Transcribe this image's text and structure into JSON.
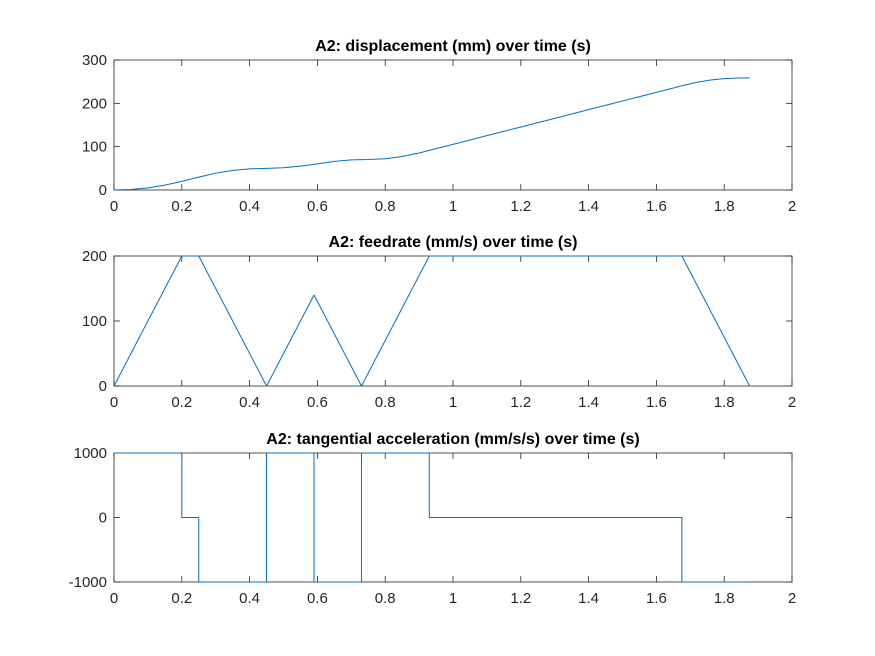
{
  "chart_data": [
    {
      "type": "line",
      "title": "A2: displacement (mm) over time (s)",
      "xlabel": "",
      "ylabel": "",
      "xlim": [
        0,
        2
      ],
      "ylim": [
        0,
        300
      ],
      "xticks": [
        "0",
        "0.2",
        "0.4",
        "0.6",
        "0.8",
        "1",
        "1.2",
        "1.4",
        "1.6",
        "1.8",
        "2"
      ],
      "xtick_values": [
        0,
        0.2,
        0.4,
        0.6,
        0.8,
        1,
        1.2,
        1.4,
        1.6,
        1.8,
        2
      ],
      "yticks": [
        "0",
        "100",
        "200",
        "300"
      ],
      "ytick_values": [
        0,
        100,
        200,
        300
      ],
      "grid": false,
      "series": [
        {
          "color": "#0072BD",
          "x": [
            0,
            0.05,
            0.1,
            0.15,
            0.2,
            0.25,
            0.3,
            0.35,
            0.4,
            0.45,
            0.5,
            0.55,
            0.6,
            0.65,
            0.7,
            0.75,
            0.8,
            0.85,
            0.9,
            0.95,
            1.0,
            1.1,
            1.2,
            1.3,
            1.4,
            1.5,
            1.6,
            1.68,
            1.72,
            1.76,
            1.8,
            1.84,
            1.875
          ],
          "y": [
            0,
            1.3,
            5,
            11.3,
            20,
            29.7,
            38.8,
            45.3,
            48.8,
            50,
            51.3,
            55,
            60.3,
            66,
            69.6,
            70.3,
            72.1,
            77.2,
            85.3,
            95.4,
            105.4,
            125.4,
            145.4,
            165.4,
            185.4,
            205.4,
            225.4,
            241.4,
            248.6,
            253.9,
            257.1,
            258.6,
            258.7
          ]
        }
      ]
    },
    {
      "type": "line",
      "title": "A2: feedrate (mm/s) over time (s)",
      "xlabel": "",
      "ylabel": "",
      "xlim": [
        0,
        2
      ],
      "ylim": [
        0,
        200
      ],
      "xticks": [
        "0",
        "0.2",
        "0.4",
        "0.6",
        "0.8",
        "1",
        "1.2",
        "1.4",
        "1.6",
        "1.8",
        "2"
      ],
      "xtick_values": [
        0,
        0.2,
        0.4,
        0.6,
        0.8,
        1,
        1.2,
        1.4,
        1.6,
        1.8,
        2
      ],
      "yticks": [
        "0",
        "100",
        "200"
      ],
      "ytick_values": [
        0,
        100,
        200
      ],
      "grid": false,
      "series": [
        {
          "color": "#0072BD",
          "x": [
            0,
            0.2,
            0.25,
            0.45,
            0.59,
            0.73,
            0.93,
            1.675,
            1.875
          ],
          "y": [
            0,
            200,
            200,
            0,
            140,
            0,
            200,
            200,
            0
          ]
        }
      ]
    },
    {
      "type": "line",
      "title": "A2: tangential acceleration (mm/s/s) over time (s)",
      "xlabel": "",
      "ylabel": "",
      "xlim": [
        0,
        2
      ],
      "ylim": [
        -1000,
        1000
      ],
      "xticks": [
        "0",
        "0.2",
        "0.4",
        "0.6",
        "0.8",
        "1",
        "1.2",
        "1.4",
        "1.6",
        "1.8",
        "2"
      ],
      "xtick_values": [
        0,
        0.2,
        0.4,
        0.6,
        0.8,
        1,
        1.2,
        1.4,
        1.6,
        1.8,
        2
      ],
      "yticks": [
        "-1000",
        "0",
        "1000"
      ],
      "ytick_values": [
        -1000,
        0,
        1000
      ],
      "grid": false,
      "series": [
        {
          "color": "#0072BD",
          "x": [
            0,
            0.2,
            0.2,
            0.25,
            0.25,
            0.45,
            0.45,
            0.59,
            0.59,
            0.73,
            0.73,
            0.93,
            0.93,
            1.675,
            1.675,
            1.875
          ],
          "y": [
            1000,
            1000,
            0,
            0,
            -1000,
            -1000,
            1000,
            1000,
            -1000,
            -1000,
            1000,
            1000,
            0,
            0,
            -1000,
            -1000
          ]
        }
      ]
    }
  ]
}
